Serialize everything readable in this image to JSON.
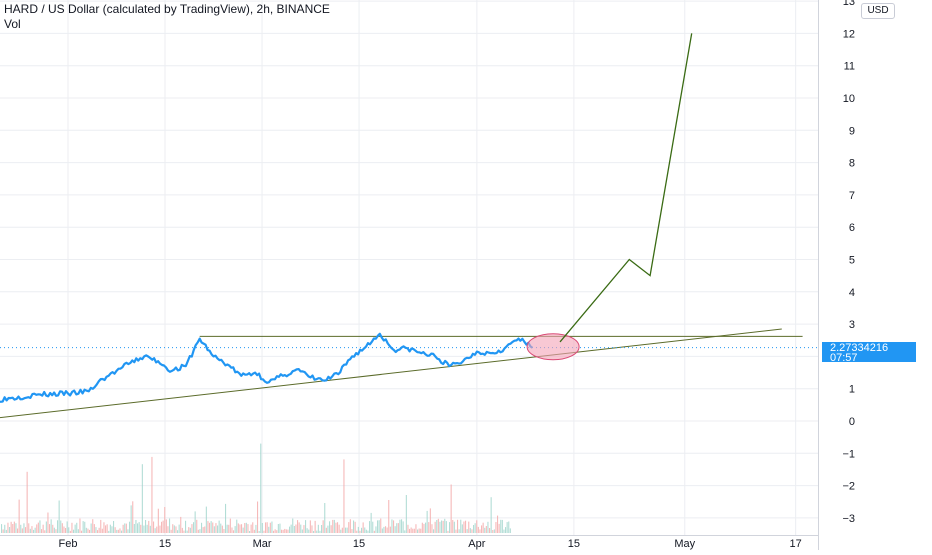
{
  "header": {
    "title": "HARD / US Dollar (calculated by TradingView), 2h, BINANCE",
    "indicator": "Vol"
  },
  "axis": {
    "currency": "USD",
    "last_price": "2.27334216",
    "countdown": "07:57"
  },
  "colors": {
    "price_line": "#2196f3",
    "trend_line": "#5b6b2a",
    "projection": "#3a6b14",
    "highlight_fill": "#f4a3b8",
    "highlight_stroke": "#d94a75",
    "grid": "#eceef2",
    "vol_up": "#9fd4cc",
    "vol_down": "#f4a8a8",
    "last_price_dots": "#2196f3"
  },
  "chart_data": {
    "type": "line",
    "title": "HARD / US Dollar (calculated by TradingView), 2h, BINANCE",
    "xlabel": "",
    "ylabel": "",
    "x_ticks": [
      "Feb",
      "15",
      "Mar",
      "15",
      "Apr",
      "15",
      "May",
      "17"
    ],
    "y_ticks": [
      "13",
      "12",
      "11",
      "10",
      "9",
      "8",
      "7",
      "6",
      "5",
      "4",
      "3",
      "2",
      "1",
      "0",
      "−1",
      "−2",
      "−3"
    ],
    "ylim": [
      -3.4,
      13
    ],
    "grid": true,
    "series": [
      {
        "values": [
          [
            "2021-01-20",
            0.6
          ],
          [
            "2021-01-24",
            0.72
          ],
          [
            "2021-01-28",
            0.82
          ],
          [
            "2021-02-01",
            0.85
          ],
          [
            "2021-02-04",
            0.92
          ],
          [
            "2021-02-06",
            1.3
          ],
          [
            "2021-02-08",
            1.55
          ],
          [
            "2021-02-10",
            1.8
          ],
          [
            "2021-02-12",
            2.0
          ],
          [
            "2021-02-14",
            1.85
          ],
          [
            "2021-02-16",
            1.55
          ],
          [
            "2021-02-18",
            1.7
          ],
          [
            "2021-02-20",
            2.55
          ],
          [
            "2021-02-22",
            2.0
          ],
          [
            "2021-02-24",
            1.75
          ],
          [
            "2021-02-26",
            1.4
          ],
          [
            "2021-02-28",
            1.5
          ],
          [
            "2021-03-02",
            1.2
          ],
          [
            "2021-03-04",
            1.4
          ],
          [
            "2021-03-06",
            1.6
          ],
          [
            "2021-03-08",
            1.35
          ],
          [
            "2021-03-10",
            1.25
          ],
          [
            "2021-03-12",
            1.45
          ],
          [
            "2021-03-14",
            2.0
          ],
          [
            "2021-03-16",
            2.3
          ],
          [
            "2021-03-18",
            2.7
          ],
          [
            "2021-03-20",
            2.2
          ],
          [
            "2021-03-22",
            2.25
          ],
          [
            "2021-03-24",
            2.1
          ],
          [
            "2021-03-26",
            2.0
          ],
          [
            "2021-03-28",
            1.7
          ],
          [
            "2021-03-30",
            1.85
          ],
          [
            "2021-04-01",
            2.15
          ],
          [
            "2021-04-03",
            2.1
          ],
          [
            "2021-04-05",
            2.25
          ],
          [
            "2021-04-07",
            2.55
          ],
          [
            "2021-04-09",
            2.27
          ]
        ]
      }
    ],
    "annotations": {
      "resistance": {
        "y": 2.62,
        "x_start": "2021-02-20",
        "x_end": "2021-05-18"
      },
      "support_trend": {
        "start": [
          "2021-01-20",
          0.05
        ],
        "end": [
          "2021-05-15",
          2.85
        ]
      },
      "projection_path": [
        [
          "2021-04-13",
          2.45
        ],
        [
          "2021-04-23",
          5.0
        ],
        [
          "2021-04-26",
          4.5
        ],
        [
          "2021-05-02",
          12.0
        ]
      ],
      "breakout_highlight": {
        "x": "2021-04-12",
        "y": 2.3
      }
    }
  }
}
